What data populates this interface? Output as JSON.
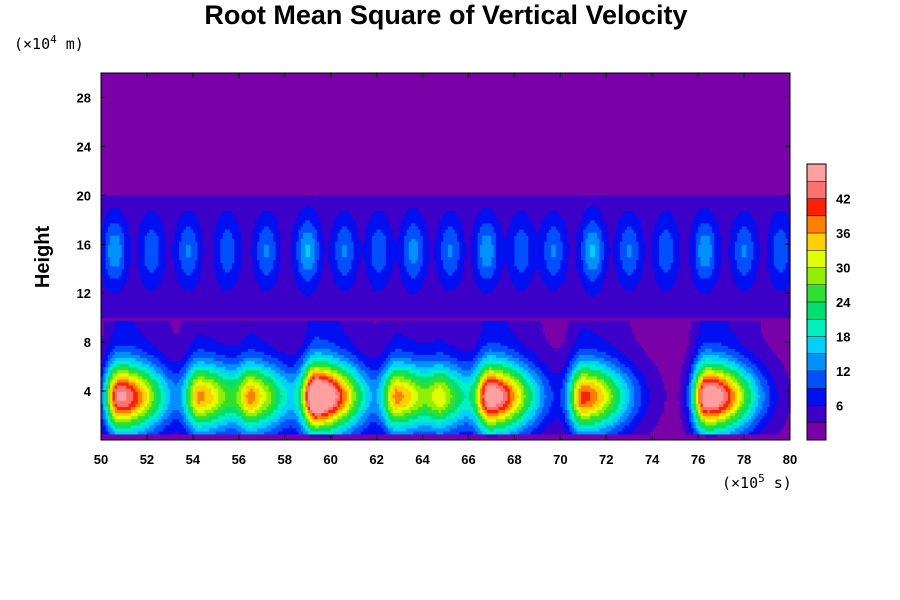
{
  "chart_data": {
    "type": "heatmap",
    "title": "Root Mean Square of Vertical Velocity",
    "xlabel": "",
    "ylabel": "Height",
    "x_unit_prefix": "(×10",
    "x_unit_exp": "5",
    "x_unit_suffix": " s)",
    "y_unit_prefix": "(×10",
    "y_unit_exp": "4",
    "y_unit_suffix": " m)",
    "xlim": [
      50,
      80
    ],
    "ylim": [
      0,
      30
    ],
    "x_ticks": [
      "50",
      "52",
      "54",
      "56",
      "58",
      "60",
      "62",
      "64",
      "66",
      "68",
      "70",
      "72",
      "74",
      "76",
      "78",
      "80"
    ],
    "y_ticks": [
      "4",
      "8",
      "12",
      "16",
      "20",
      "24",
      "28"
    ],
    "colorbar": {
      "min": 0,
      "max": 48,
      "ticks": [
        "6",
        "12",
        "18",
        "24",
        "30",
        "36",
        "42"
      ],
      "colors": [
        "#7a00a8",
        "#3c00c8",
        "#0010f0",
        "#0050ff",
        "#0090ff",
        "#00d0ff",
        "#00f0c0",
        "#00e070",
        "#30e030",
        "#90f000",
        "#e0ff00",
        "#ffd000",
        "#ff8000",
        "#ff2000",
        "#ff7070",
        "#ff9fa0"
      ]
    },
    "background_value": 1,
    "high_altitude_value": 1,
    "events": [
      {
        "time": 50.8,
        "peak_rms": 40
      },
      {
        "time": 54.3,
        "peak_rms": 30
      },
      {
        "time": 56.6,
        "peak_rms": 24
      },
      {
        "time": 59.4,
        "peak_rms": 46
      },
      {
        "time": 62.9,
        "peak_rms": 30
      },
      {
        "time": 64.9,
        "peak_rms": 16
      },
      {
        "time": 67.0,
        "peak_rms": 38
      },
      {
        "time": 71.0,
        "peak_rms": 34
      },
      {
        "time": 76.4,
        "peak_rms": 44
      }
    ],
    "upper_layer": {
      "height_range": [
        10,
        20
      ],
      "centers": [
        50.6,
        52.2,
        53.8,
        55.5,
        57.2,
        59.0,
        60.6,
        62.1,
        63.6,
        65.2,
        66.8,
        68.3,
        69.7,
        71.4,
        73.0,
        74.6,
        76.3,
        78.0,
        79.6
      ],
      "values": [
        10,
        7,
        8,
        7,
        8,
        11,
        8,
        7,
        9,
        8,
        10,
        7,
        8,
        11,
        8,
        7,
        10,
        8,
        7
      ]
    },
    "grid": false
  }
}
